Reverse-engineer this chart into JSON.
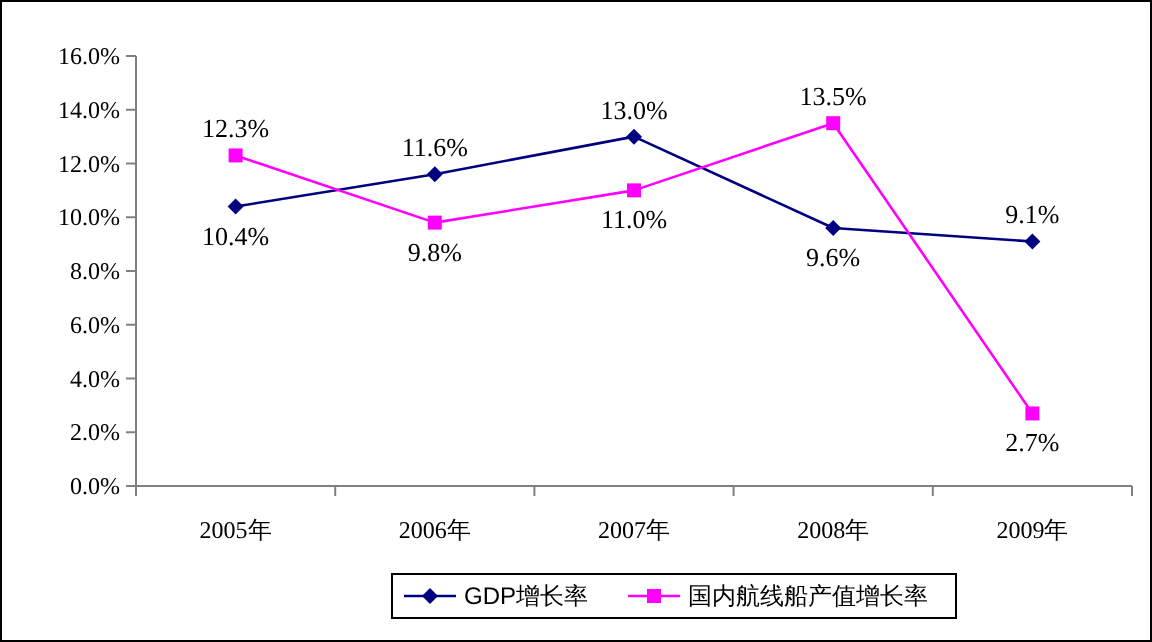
{
  "chart_data": {
    "type": "line",
    "categories": [
      "2005年",
      "2006年",
      "2007年",
      "2008年",
      "2009年"
    ],
    "series": [
      {
        "name": "GDP增长率",
        "color": "#000080",
        "marker": "diamond",
        "values": [
          10.4,
          11.6,
          13.0,
          9.6,
          9.1
        ],
        "value_labels": [
          "10.4%",
          "11.6%",
          "13.0%",
          "9.6%",
          "9.1%"
        ]
      },
      {
        "name": "国内航线船产值增长率",
        "color": "#ff00ff",
        "marker": "square",
        "values": [
          12.3,
          9.8,
          11.0,
          13.5,
          2.7
        ],
        "value_labels": [
          "12.3%",
          "9.8%",
          "11.0%",
          "13.5%",
          "2.7%"
        ]
      }
    ],
    "ylim": [
      0,
      16
    ],
    "yticks": [
      {
        "value": 0,
        "label": "0.0%"
      },
      {
        "value": 2,
        "label": "2.0%"
      },
      {
        "value": 4,
        "label": "4.0%"
      },
      {
        "value": 6,
        "label": "6.0%"
      },
      {
        "value": 8,
        "label": "8.0%"
      },
      {
        "value": 10,
        "label": "10.0%"
      },
      {
        "value": 12,
        "label": "12.0%"
      },
      {
        "value": 14,
        "label": "14.0%"
      },
      {
        "value": 16,
        "label": "16.0%"
      }
    ],
    "grid": false,
    "legend": "bottom",
    "line_style": "solid"
  }
}
